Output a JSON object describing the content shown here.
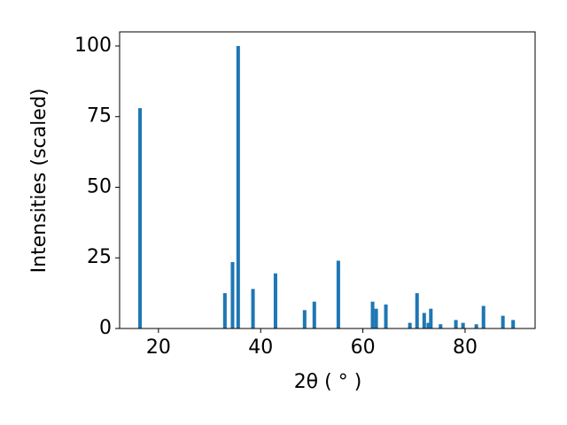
{
  "chart_data": {
    "type": "bar",
    "xlabel": "2θ ( ° )",
    "ylabel": "Intensities (scaled)",
    "x": [
      16.4,
      33.0,
      34.5,
      35.6,
      38.5,
      42.9,
      48.6,
      50.5,
      55.2,
      61.9,
      62.6,
      64.5,
      69.2,
      70.6,
      72.0,
      72.8,
      73.3,
      75.2,
      78.2,
      79.6,
      82.2,
      83.6,
      87.4,
      89.4
    ],
    "values": [
      78,
      12.5,
      23.5,
      100,
      14,
      19.5,
      6.5,
      9.5,
      24,
      9.5,
      7,
      8.5,
      2,
      12.5,
      5.5,
      2,
      7,
      1.5,
      3,
      2,
      1.5,
      8,
      4.5,
      3
    ],
    "color": "#1f77b4",
    "xlim": [
      12.4,
      93.7
    ],
    "ylim": [
      0,
      105
    ],
    "xticks": [
      20,
      40,
      60,
      80
    ],
    "yticks": [
      0,
      25,
      50,
      75,
      100
    ]
  }
}
